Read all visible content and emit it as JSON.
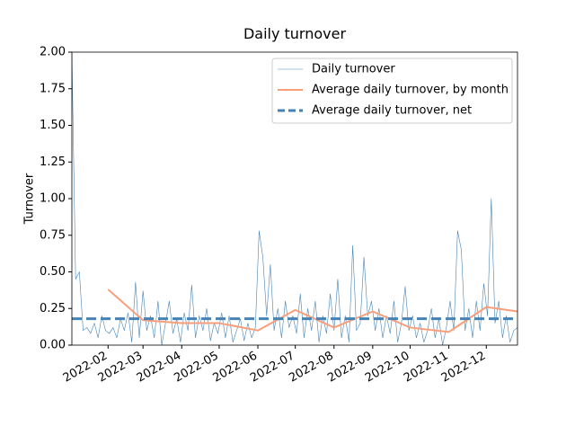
{
  "chart_data": {
    "type": "line",
    "title": "Daily turnover",
    "y_label": "Turnover",
    "xlim": [
      2,
      359
    ],
    "ylim": [
      0,
      2
    ],
    "xticks": [
      {
        "value": 31,
        "label": "2022-02"
      },
      {
        "value": 59,
        "label": "2022-03"
      },
      {
        "value": 90,
        "label": "2022-04"
      },
      {
        "value": 120,
        "label": "2022-05"
      },
      {
        "value": 151,
        "label": "2022-06"
      },
      {
        "value": 181,
        "label": "2022-07"
      },
      {
        "value": 212,
        "label": "2022-08"
      },
      {
        "value": 243,
        "label": "2022-09"
      },
      {
        "value": 273,
        "label": "2022-10"
      },
      {
        "value": 304,
        "label": "2022-11"
      },
      {
        "value": 334,
        "label": "2022-12"
      }
    ],
    "yticks": [
      {
        "value": 0,
        "label": "0.00"
      },
      {
        "value": 0.25,
        "label": "0.25"
      },
      {
        "value": 0.5,
        "label": "0.50"
      },
      {
        "value": 0.75,
        "label": "0.75"
      },
      {
        "value": 1,
        "label": "1.00"
      },
      {
        "value": 1.25,
        "label": "1.25"
      },
      {
        "value": 1.5,
        "label": "1.50"
      },
      {
        "value": 1.75,
        "label": "1.75"
      },
      {
        "value": 2,
        "label": "2.00"
      }
    ],
    "legend": "upper right",
    "series": [
      {
        "name": "Daily turnover",
        "color": "#4682b4",
        "linewidth": 0.6,
        "linestyle": "solid",
        "x": [
          2,
          5,
          8,
          11,
          14,
          17,
          20,
          23,
          26,
          29,
          32,
          35,
          38,
          41,
          44,
          47,
          50,
          53,
          56,
          59,
          62,
          65,
          68,
          71,
          74,
          77,
          80,
          83,
          86,
          89,
          92,
          95,
          98,
          101,
          104,
          107,
          110,
          113,
          116,
          119,
          122,
          125,
          128,
          131,
          134,
          137,
          140,
          143,
          146,
          149,
          152,
          155,
          158,
          161,
          164,
          167,
          170,
          173,
          176,
          179,
          182,
          185,
          188,
          191,
          194,
          197,
          200,
          203,
          206,
          209,
          212,
          215,
          218,
          221,
          224,
          227,
          230,
          233,
          236,
          239,
          242,
          245,
          248,
          251,
          254,
          257,
          260,
          263,
          266,
          269,
          272,
          275,
          278,
          281,
          284,
          287,
          290,
          293,
          296,
          299,
          302,
          305,
          308,
          311,
          314,
          317,
          320,
          323,
          326,
          329,
          332,
          335,
          338,
          341,
          344,
          347,
          350,
          353,
          356,
          359
        ],
        "values": [
          2.0,
          0.45,
          0.5,
          0.1,
          0.12,
          0.08,
          0.15,
          0.05,
          0.2,
          0.1,
          0.08,
          0.12,
          0.05,
          0.18,
          0.1,
          0.22,
          0.02,
          0.43,
          0.05,
          0.37,
          0.1,
          0.2,
          0.05,
          0.3,
          0.0,
          0.15,
          0.3,
          0.08,
          0.18,
          0.02,
          0.22,
          0.1,
          0.41,
          0.05,
          0.2,
          0.1,
          0.25,
          0.03,
          0.15,
          0.08,
          0.22,
          0.05,
          0.2,
          0.02,
          0.1,
          0.18,
          0.03,
          0.15,
          0.05,
          0.12,
          0.78,
          0.6,
          0.2,
          0.55,
          0.1,
          0.25,
          0.05,
          0.3,
          0.12,
          0.2,
          0.08,
          0.35,
          0.05,
          0.25,
          0.1,
          0.3,
          0.02,
          0.2,
          0.08,
          0.35,
          0.1,
          0.45,
          0.05,
          0.2,
          0.02,
          0.68,
          0.1,
          0.15,
          0.6,
          0.2,
          0.3,
          0.1,
          0.25,
          0.05,
          0.2,
          0.08,
          0.3,
          0.02,
          0.15,
          0.4,
          0.1,
          0.2,
          0.05,
          0.15,
          0.02,
          0.1,
          0.25,
          0.05,
          0.18,
          0.0,
          0.12,
          0.3,
          0.1,
          0.78,
          0.65,
          0.1,
          0.25,
          0.05,
          0.3,
          0.1,
          0.42,
          0.2,
          1.0,
          0.15,
          0.3,
          0.05,
          0.2,
          0.02,
          0.1,
          0.12
        ]
      },
      {
        "name": "Average daily turnover, by month",
        "color": "#fa9e7a",
        "linewidth": 2,
        "linestyle": "solid",
        "x": [
          31,
          59,
          90,
          120,
          151,
          181,
          212,
          243,
          273,
          304,
          334,
          359
        ],
        "values": [
          0.38,
          0.17,
          0.15,
          0.15,
          0.1,
          0.24,
          0.12,
          0.23,
          0.12,
          0.09,
          0.26,
          0.23
        ]
      },
      {
        "name": "Average daily turnover, net",
        "color": "#4682b4",
        "linewidth": 3,
        "linestyle": "dashed",
        "values": [
          0.18
        ]
      }
    ]
  }
}
